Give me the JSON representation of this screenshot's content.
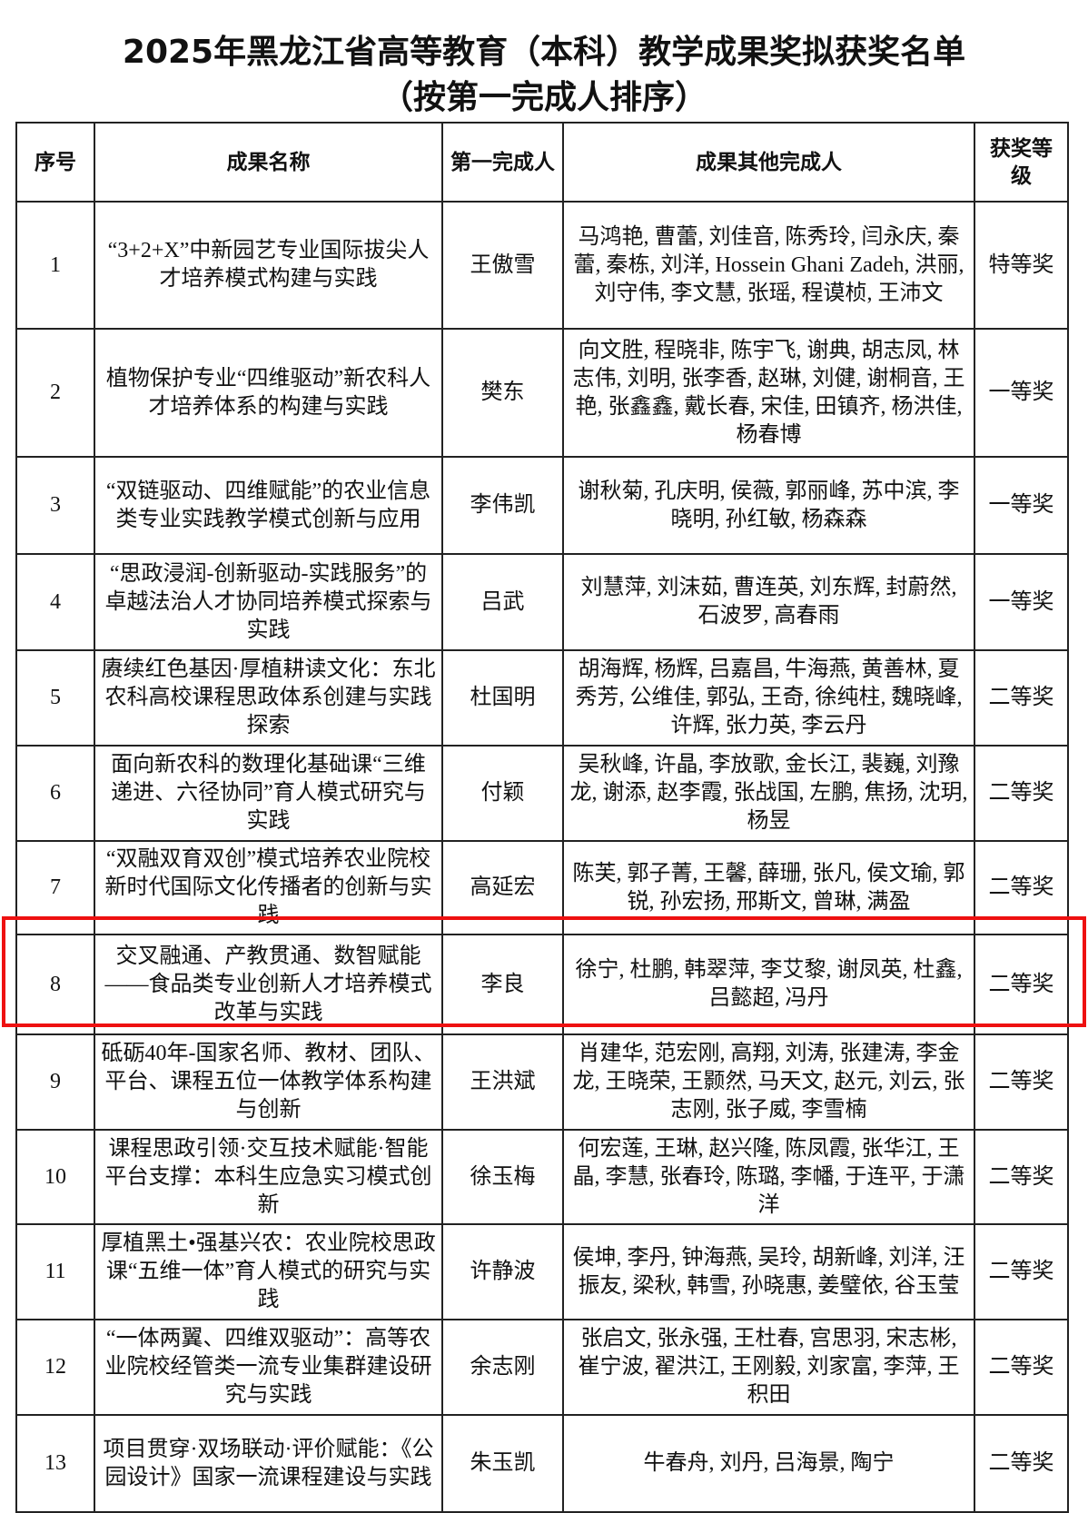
{
  "title": "2025年黑龙江省高等教育（本科）教学成果奖拟获奖名单",
  "subtitle": "（按第一完成人排序）",
  "table": {
    "headers": [
      "序号",
      "成果名称",
      "第一完成人",
      "成果其他完成人",
      "获奖等级"
    ],
    "rows": [
      {
        "no": "1",
        "name": "“3+2+X”中新园艺专业国际拔尖人才培养模式构建与实践",
        "first": "王傲雪",
        "others": "马鸿艳, 曹蕾, 刘佳音, 陈秀玲, 闫永庆, 秦蕾, 秦栋, 刘洋, Hossein Ghani Zadeh, 洪丽, 刘守伟, 李文慧, 张瑶, 程谟桢, 王沛文",
        "level": "特等奖"
      },
      {
        "no": "2",
        "name": "植物保护专业“四维驱动”新农科人才培养体系的构建与实践",
        "first": "樊东",
        "others": "向文胜, 程晓非, 陈宇飞, 谢典, 胡志凤, 林志伟, 刘明, 张李香, 赵琳, 刘健, 谢桐音, 王艳, 张鑫鑫, 戴长春, 宋佳, 田镇齐, 杨洪佳, 杨春博",
        "level": "一等奖"
      },
      {
        "no": "3",
        "name": "“双链驱动、四维赋能”的农业信息类专业实践教学模式创新与应用",
        "first": "李伟凯",
        "others": "谢秋菊, 孔庆明, 侯薇, 郭丽峰, 苏中滨, 李晓明, 孙红敏, 杨森森",
        "level": "一等奖"
      },
      {
        "no": "4",
        "name": "“思政浸润-创新驱动-实践服务”的卓越法治人才协同培养模式探索与实践",
        "first": "吕武",
        "others": "刘慧萍, 刘沫茹, 曹连英, 刘东辉, 封蔚然, 石波罗, 高春雨",
        "level": "一等奖"
      },
      {
        "no": "5",
        "name": "赓续红色基因·厚植耕读文化：东北农科高校课程思政体系创建与实践探索",
        "first": "杜国明",
        "others": "胡海辉, 杨辉, 吕嘉昌, 牛海燕, 黄善林, 夏秀芳, 公维佳, 郭弘, 王奇, 徐纯柱, 魏晓峰, 许辉, 张力英, 李云丹",
        "level": "二等奖"
      },
      {
        "no": "6",
        "name": "面向新农科的数理化基础课“三维递进、六径协同”育人模式研究与实践",
        "first": "付颖",
        "others": "吴秋峰, 许晶, 李放歌, 金长江, 裴巍, 刘豫龙, 谢添, 赵李霞, 张战国, 左鹏, 焦扬, 沈玥, 杨昱",
        "level": "二等奖"
      },
      {
        "no": "7",
        "name": "“双融双育双创”模式培养农业院校新时代国际文化传播者的创新与实践",
        "first": "高延宏",
        "others": "陈芙, 郭子菁, 王馨, 薛珊, 张凡, 侯文瑜, 郭锐, 孙宏扬, 邢斯文, 曾琳, 满盈",
        "level": "二等奖"
      },
      {
        "no": "8",
        "name": "交叉融通、产教贯通、数智赋能——食品类专业创新人才培养模式改革与实践",
        "first": "李良",
        "others": "徐宁, 杜鹏, 韩翠萍, 李艾黎, 谢凤英, 杜鑫, 吕懿超, 冯丹",
        "level": "二等奖"
      },
      {
        "no": "9",
        "name": "砥砺40年-国家名师、教材、团队、平台、课程五位一体教学体系构建与创新",
        "first": "王洪斌",
        "others": "肖建华, 范宏刚, 高翔, 刘涛, 张建涛, 李金龙, 王晓荣, 王颢然, 马天文, 赵元, 刘云, 张志刚, 张子威, 李雪楠",
        "level": "二等奖"
      },
      {
        "no": "10",
        "name": "课程思政引领·交互技术赋能·智能平台支撑：本科生应急实习模式创新",
        "first": "徐玉梅",
        "others": "何宏莲, 王琳, 赵兴隆, 陈凤霞, 张华江, 王晶, 李慧, 张春玲, 陈璐, 李幡, 于连平, 于潇洋",
        "level": "二等奖"
      },
      {
        "no": "11",
        "name": "厚植黑土•强基兴农：农业院校思政课“五维一体”育人模式的研究与实践",
        "first": "许静波",
        "others": "侯坤, 李丹, 钟海燕, 吴玲, 胡新峰, 刘洋, 汪振友, 梁秋, 韩雪, 孙晓惠, 姜璧依, 谷玉莹",
        "level": "二等奖"
      },
      {
        "no": "12",
        "name": "“一体两翼、四维双驱动”：高等农业院校经管类一流专业集群建设研究与实践",
        "first": "余志刚",
        "others": "张启文, 张永强, 王杜春, 宫思羽, 宋志彬, 崔宁波, 翟洪江, 王刚毅, 刘家富, 李萍, 王积田",
        "level": "二等奖"
      },
      {
        "no": "13",
        "name": "项目贯穿·双场联动·评价赋能：《公园设计》国家一流课程建设与实践",
        "first": "朱玉凯",
        "others": "牛春舟, 刘丹, 吕海景, 陶宁",
        "level": "二等奖"
      }
    ],
    "highlighted_row": "8",
    "highlight_color": "#ee1111"
  }
}
